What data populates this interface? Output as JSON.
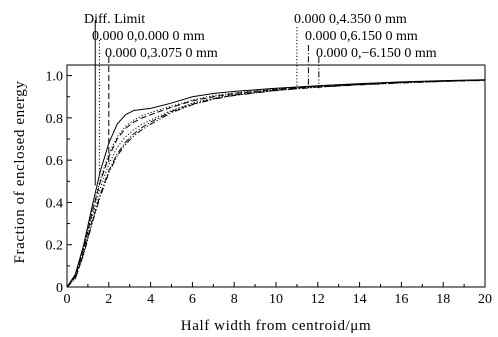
{
  "chart_data": {
    "type": "line",
    "xlabel": "Half width from centroid/μm",
    "ylabel": "Fraction of enclosed energy",
    "xlim": [
      0,
      20
    ],
    "ylim": [
      0,
      1.05
    ],
    "xticks": [
      0,
      2,
      4,
      6,
      8,
      10,
      12,
      14,
      16,
      18,
      20
    ],
    "yticks": [
      0,
      0.2,
      0.4,
      0.6,
      0.8,
      1.0
    ],
    "xtick_labels": [
      "0",
      "2",
      "4",
      "6",
      "8",
      "10",
      "12",
      "14",
      "16",
      "18",
      "20"
    ],
    "ytick_labels": [
      "0",
      "0.2",
      "0.4",
      "0.6",
      "0.8",
      "1.0"
    ],
    "grid": false,
    "series": [
      {
        "name": "Diff. Limit",
        "style": "solid",
        "x": [
          0,
          0.4,
          0.8,
          1.2,
          1.6,
          2.0,
          2.4,
          2.8,
          3.2,
          3.6,
          4,
          5,
          6,
          7,
          8,
          10,
          12,
          14,
          16,
          18,
          20
        ],
        "y": [
          0,
          0.06,
          0.2,
          0.38,
          0.55,
          0.68,
          0.77,
          0.815,
          0.835,
          0.84,
          0.845,
          0.87,
          0.9,
          0.915,
          0.925,
          0.94,
          0.952,
          0.962,
          0.97,
          0.976,
          0.98
        ]
      },
      {
        "name": "0.000 0,0.000 0 mm",
        "style": "dotted",
        "x": [
          0,
          0.4,
          0.8,
          1.2,
          1.6,
          2.0,
          2.4,
          2.8,
          3.2,
          3.6,
          4,
          5,
          6,
          7,
          8,
          10,
          12,
          14,
          16,
          18,
          20
        ],
        "y": [
          0,
          0.055,
          0.19,
          0.36,
          0.51,
          0.63,
          0.71,
          0.76,
          0.79,
          0.81,
          0.825,
          0.855,
          0.885,
          0.905,
          0.918,
          0.937,
          0.95,
          0.96,
          0.968,
          0.975,
          0.98
        ]
      },
      {
        "name": "0.000 0,3.075 0 mm",
        "style": "dashed",
        "x": [
          0,
          0.4,
          0.8,
          1.2,
          1.6,
          2.0,
          2.4,
          2.8,
          3.2,
          3.6,
          4,
          5,
          6,
          7,
          8,
          10,
          12,
          14,
          16,
          18,
          20
        ],
        "y": [
          0,
          0.05,
          0.18,
          0.35,
          0.5,
          0.615,
          0.7,
          0.75,
          0.78,
          0.8,
          0.815,
          0.85,
          0.88,
          0.9,
          0.915,
          0.935,
          0.949,
          0.959,
          0.967,
          0.974,
          0.979
        ]
      },
      {
        "name": "0.000 0,4.350 0 mm",
        "style": "dotted",
        "x": [
          0,
          0.4,
          0.8,
          1.2,
          1.6,
          2.0,
          2.4,
          2.8,
          3.2,
          3.6,
          4,
          5,
          6,
          7,
          8,
          10,
          12,
          14,
          16,
          18,
          20
        ],
        "y": [
          0,
          0.045,
          0.17,
          0.33,
          0.47,
          0.58,
          0.66,
          0.71,
          0.745,
          0.77,
          0.79,
          0.835,
          0.87,
          0.893,
          0.91,
          0.932,
          0.947,
          0.958,
          0.967,
          0.974,
          0.979
        ]
      },
      {
        "name": "0.000 0,6.150 0 mm",
        "style": "dashdot",
        "x": [
          0,
          0.4,
          0.8,
          1.2,
          1.6,
          2.0,
          2.4,
          2.8,
          3.2,
          3.6,
          4,
          5,
          6,
          7,
          8,
          10,
          12,
          14,
          16,
          18,
          20
        ],
        "y": [
          0,
          0.04,
          0.16,
          0.31,
          0.44,
          0.55,
          0.63,
          0.685,
          0.725,
          0.755,
          0.78,
          0.83,
          0.865,
          0.89,
          0.908,
          0.93,
          0.946,
          0.957,
          0.966,
          0.973,
          0.978
        ]
      },
      {
        "name": "0.000 0,−6.150 0 mm",
        "style": "dashdotdot",
        "x": [
          0,
          0.4,
          0.8,
          1.2,
          1.6,
          2.0,
          2.4,
          2.8,
          3.2,
          3.6,
          4,
          5,
          6,
          7,
          8,
          10,
          12,
          14,
          16,
          18,
          20
        ],
        "y": [
          0,
          0.04,
          0.155,
          0.3,
          0.43,
          0.54,
          0.62,
          0.675,
          0.715,
          0.745,
          0.77,
          0.825,
          0.862,
          0.888,
          0.906,
          0.929,
          0.945,
          0.956,
          0.965,
          0.972,
          0.977
        ]
      }
    ],
    "markers": [
      {
        "label": "Diff. Limit",
        "x": 1.35,
        "style": "solid"
      },
      {
        "label": "0.000 0,0.000 0 mm",
        "x": 1.55,
        "style": "dotted"
      },
      {
        "label": "0.000 0,3.075 0 mm",
        "x": 2.0,
        "style": "dashed"
      },
      {
        "label": "0.000 0,4.350 0 mm",
        "x": 11.0,
        "style": "dotted"
      },
      {
        "label": "0.000 0,6.150 0 mm",
        "x": 11.55,
        "style": "dashdot"
      },
      {
        "label": "0.000 0,−6.150 0 mm",
        "x": 12.05,
        "style": "dashdotdot"
      }
    ]
  }
}
